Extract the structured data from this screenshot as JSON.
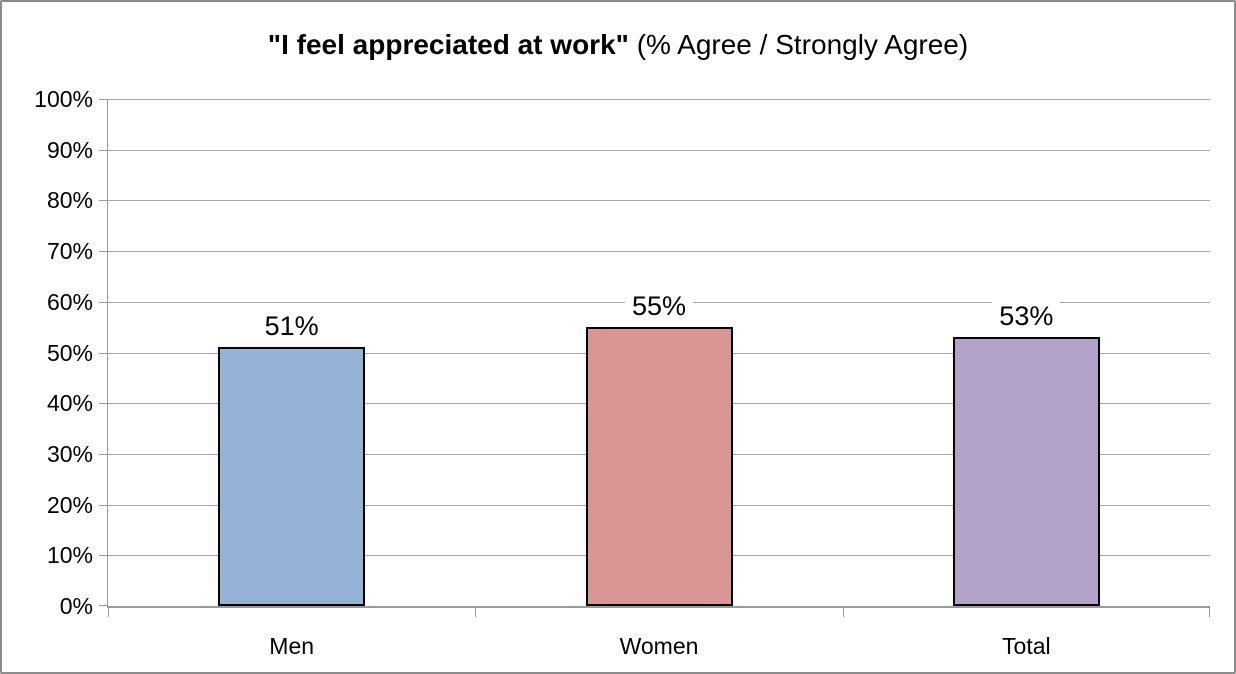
{
  "chart_data": {
    "type": "bar",
    "title": "\"I feel appreciated at work\" (% Agree / Strongly Agree)",
    "title_bold": "\"I feel appreciated at work\"",
    "title_regular": " (% Agree / Strongly Agree)",
    "categories": [
      "Men",
      "Women",
      "Total"
    ],
    "values": [
      51,
      55,
      53
    ],
    "data_labels": [
      "51%",
      "55%",
      "53%"
    ],
    "bar_colors": [
      "#95B3D7",
      "#D99694",
      "#B3A2C7"
    ],
    "xlabel": "",
    "ylabel": "",
    "ylim": [
      0,
      100
    ],
    "yticks": [
      0,
      10,
      20,
      30,
      40,
      50,
      60,
      70,
      80,
      90,
      100
    ],
    "ytick_labels": [
      "0%",
      "10%",
      "20%",
      "30%",
      "40%",
      "50%",
      "60%",
      "70%",
      "80%",
      "90%",
      "100%"
    ],
    "grid": "horizontal",
    "legend": "none"
  },
  "colors": {
    "background": "#FFFFFF",
    "frame_border": "#8C8C8C",
    "gridline": "#A6A6A6",
    "axis": "#9A9A9A",
    "bar_border": "#000000",
    "text": "#000000"
  }
}
